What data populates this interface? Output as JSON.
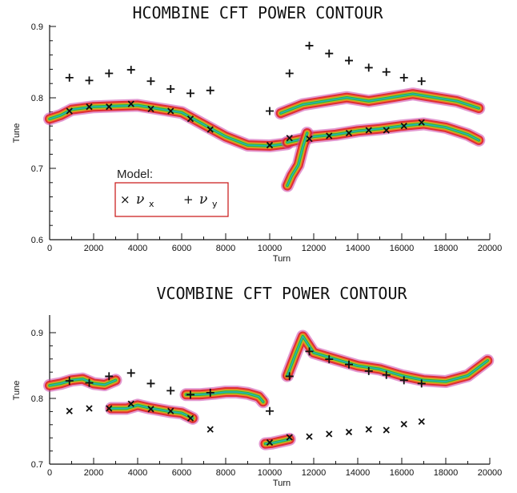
{
  "chart_data": [
    {
      "type": "scatter",
      "title": "HCOMBINE CFT POWER CONTOUR",
      "xlabel": "Turn",
      "ylabel": "Tune",
      "xlim": [
        0,
        20000
      ],
      "ylim": [
        0.6,
        0.9
      ],
      "xticks": [
        "0",
        "2000",
        "4000",
        "6000",
        "8000",
        "10000",
        "12000",
        "14000",
        "16000",
        "18000",
        "20000"
      ],
      "yticks": [
        "0.6",
        "0.7",
        "0.8",
        "0.9"
      ],
      "contour_colors": [
        "#cc44aa",
        "#dd2222",
        "#ee8822",
        "#aacc22",
        "#22aa44",
        "#22bbcc"
      ],
      "legend": {
        "title": "Model:",
        "position": "lower-left",
        "x_symbol": "×",
        "y_symbol": "+",
        "greek": "ν",
        "x_sub": "x",
        "y_sub": "y"
      },
      "series": [
        {
          "marker": "x",
          "x": [
            900,
            1800,
            2700,
            3700,
            4600,
            5500,
            6400,
            7300,
            10000,
            10900,
            11800,
            12700,
            13600,
            14500,
            15300,
            16100,
            16900
          ],
          "y": [
            0.781,
            0.787,
            0.787,
            0.791,
            0.784,
            0.781,
            0.77,
            0.755,
            0.733,
            0.743,
            0.742,
            0.746,
            0.75,
            0.754,
            0.754,
            0.76,
            0.765
          ]
        },
        {
          "marker": "+",
          "x": [
            900,
            1800,
            2700,
            3700,
            4600,
            5500,
            6400,
            7300,
            10000,
            10900,
            11800,
            12700,
            13600,
            14500,
            15300,
            16100,
            16900
          ],
          "y": [
            0.828,
            0.824,
            0.834,
            0.839,
            0.823,
            0.812,
            0.806,
            0.81,
            0.781,
            0.834,
            0.873,
            0.862,
            0.852,
            0.842,
            0.836,
            0.828,
            0.823
          ]
        }
      ],
      "ridges": [
        {
          "x": [
            0,
            500,
            1000,
            2000,
            3000,
            4000,
            5000,
            6000,
            7000,
            8000,
            9000,
            10000,
            10800
          ],
          "y": [
            0.77,
            0.775,
            0.783,
            0.787,
            0.788,
            0.789,
            0.784,
            0.779,
            0.762,
            0.745,
            0.733,
            0.732,
            0.735
          ]
        },
        {
          "x": [
            10800,
            12000,
            13000,
            14000,
            15000,
            16000,
            17000,
            18000,
            19000,
            19500
          ],
          "y": [
            0.737,
            0.745,
            0.748,
            0.753,
            0.756,
            0.76,
            0.763,
            0.758,
            0.748,
            0.74
          ]
        },
        {
          "x": [
            10500,
            11500,
            12500,
            13500,
            14500,
            15500,
            16500,
            17500,
            18500,
            19500
          ],
          "y": [
            0.778,
            0.79,
            0.795,
            0.8,
            0.795,
            0.8,
            0.805,
            0.8,
            0.795,
            0.785
          ]
        },
        {
          "x": [
            10800,
            11000,
            11300,
            11500,
            11700
          ],
          "y": [
            0.676,
            0.69,
            0.705,
            0.73,
            0.75
          ]
        }
      ]
    },
    {
      "type": "scatter",
      "title": "VCOMBINE CFT POWER CONTOUR",
      "xlabel": "Turn",
      "ylabel": "Tune",
      "xlim": [
        0,
        20000
      ],
      "ylim": [
        0.7,
        0.925
      ],
      "xticks": [
        "0",
        "2000",
        "4000",
        "6000",
        "8000",
        "10000",
        "12000",
        "14000",
        "16000",
        "18000",
        "20000"
      ],
      "yticks": [
        "0.7",
        "0.8",
        "0.9"
      ],
      "contour_colors": [
        "#cc44aa",
        "#dd2222",
        "#ee8822",
        "#aacc22",
        "#22aa44",
        "#22bbcc"
      ],
      "series": [
        {
          "marker": "x",
          "x": [
            900,
            1800,
            2700,
            3700,
            4600,
            5500,
            6400,
            7300,
            10000,
            10900,
            11800,
            12700,
            13600,
            14500,
            15300,
            16100,
            16900
          ],
          "y": [
            0.781,
            0.785,
            0.785,
            0.792,
            0.784,
            0.781,
            0.77,
            0.753,
            0.733,
            0.741,
            0.742,
            0.746,
            0.749,
            0.753,
            0.752,
            0.761,
            0.765
          ]
        },
        {
          "marker": "+",
          "x": [
            900,
            1800,
            2700,
            3700,
            4600,
            5500,
            6400,
            7300,
            10000,
            10900,
            11800,
            12700,
            13600,
            14500,
            15300,
            16100,
            16900
          ],
          "y": [
            0.827,
            0.824,
            0.834,
            0.839,
            0.823,
            0.812,
            0.806,
            0.809,
            0.781,
            0.834,
            0.872,
            0.86,
            0.852,
            0.842,
            0.836,
            0.828,
            0.823
          ]
        }
      ],
      "ridges": [
        {
          "x": [
            0,
            500,
            1000,
            1500,
            2000,
            2500,
            3000
          ],
          "y": [
            0.82,
            0.823,
            0.828,
            0.83,
            0.823,
            0.821,
            0.828
          ]
        },
        {
          "x": [
            2800,
            3500,
            4000,
            4500,
            5000,
            5500,
            6000,
            6500
          ],
          "y": [
            0.785,
            0.785,
            0.79,
            0.786,
            0.783,
            0.78,
            0.778,
            0.77
          ]
        },
        {
          "x": [
            6200,
            6800,
            7500,
            8000,
            8500,
            9000,
            9500,
            9700
          ],
          "y": [
            0.806,
            0.806,
            0.808,
            0.81,
            0.81,
            0.808,
            0.803,
            0.795
          ]
        },
        {
          "x": [
            9800,
            10100,
            10500,
            10900
          ],
          "y": [
            0.731,
            0.732,
            0.735,
            0.738
          ]
        },
        {
          "x": [
            10800,
            11200,
            11500,
            12000,
            13000,
            14000,
            15000,
            16000,
            17000,
            18000,
            19000,
            19900
          ],
          "y": [
            0.835,
            0.87,
            0.895,
            0.87,
            0.86,
            0.85,
            0.845,
            0.835,
            0.828,
            0.826,
            0.835,
            0.858
          ]
        }
      ]
    }
  ]
}
